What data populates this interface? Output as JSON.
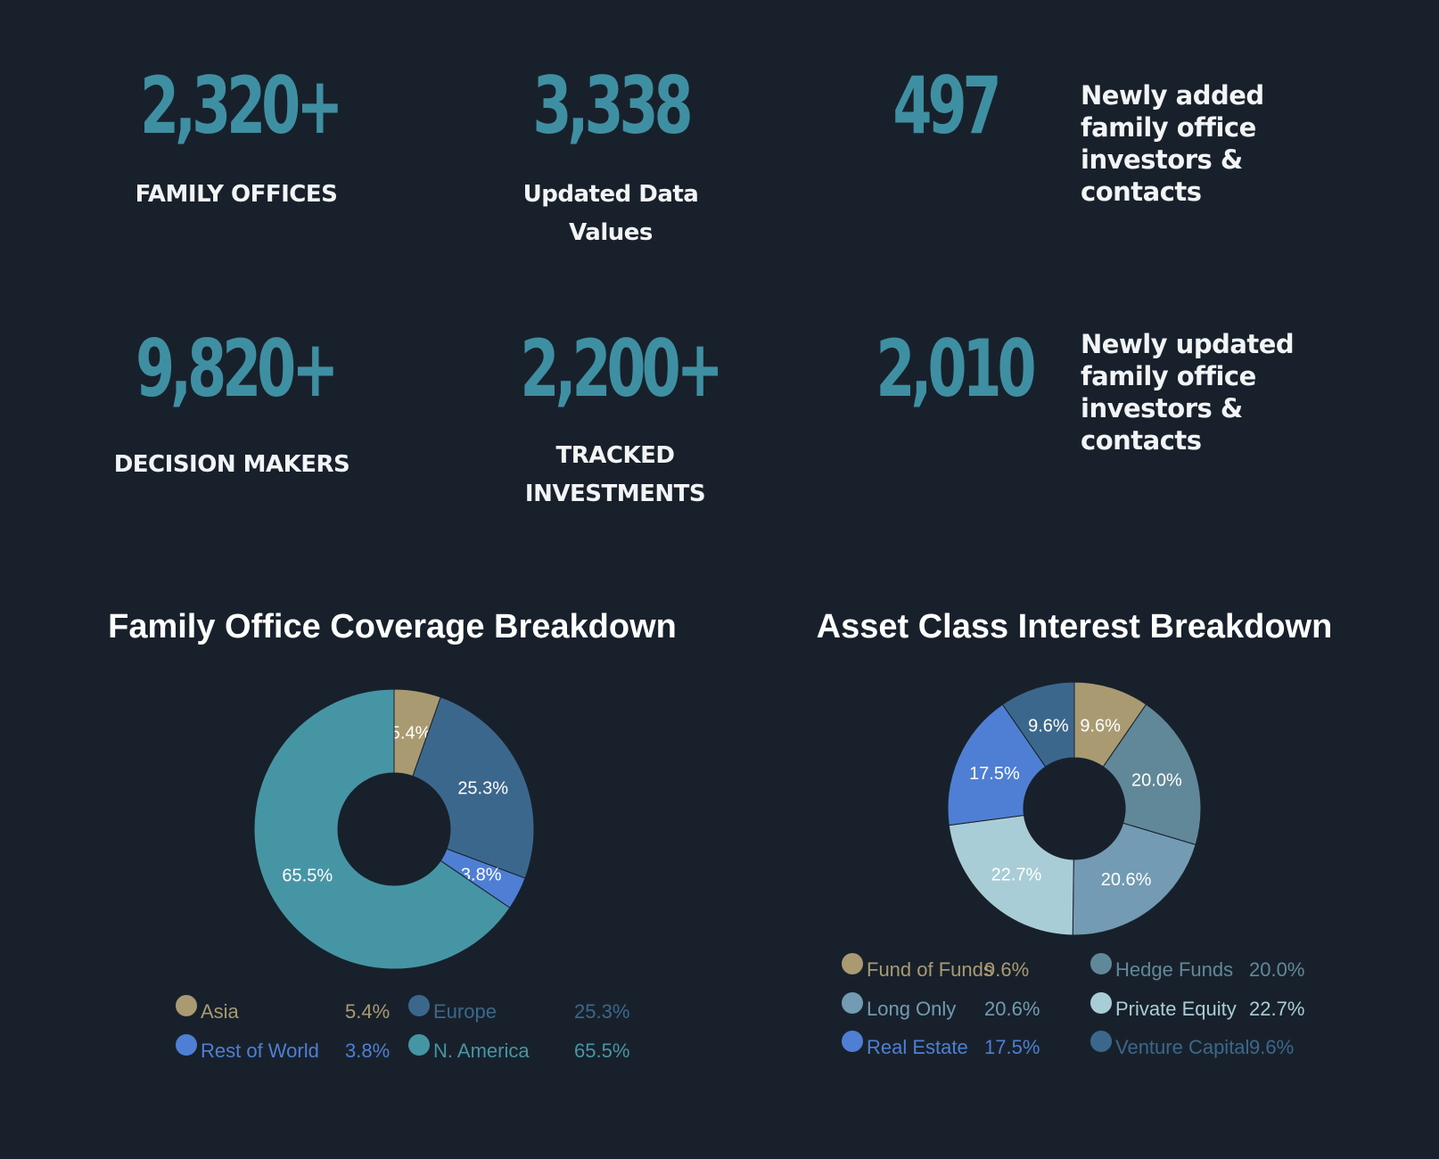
{
  "stats": [
    {
      "value": "2,320+",
      "label": "FAMILY OFFICES"
    },
    {
      "value": "3,338",
      "label": "Updated Data Values"
    },
    {
      "value": "497",
      "label": "Newly added family office  investors & contacts"
    },
    {
      "value": "9,820+",
      "label": "DECISION MAKERS"
    },
    {
      "value": "2,200+",
      "label": "TRACKED INVESTMENTS"
    },
    {
      "value": "2,010",
      "label": "Newly updated family office investors & contacts"
    }
  ],
  "colors": {
    "background": "#18212b",
    "stat_number": "#3f8fa3",
    "text": "#f2f4f6"
  },
  "chart_data": [
    {
      "type": "pie",
      "title": "Family Office Coverage Breakdown",
      "slices": [
        {
          "label": "Asia",
          "value": 5.4,
          "display": "5.4%",
          "color": "#a99a72"
        },
        {
          "label": "Europe",
          "value": 25.3,
          "display": "25.3%",
          "color": "#3c678d"
        },
        {
          "label": "Rest of World",
          "value": 3.8,
          "display": "3.8%",
          "color": "#4f7fd4"
        },
        {
          "label": "N. America",
          "value": 65.5,
          "display": "65.5%",
          "color": "#4695a5"
        }
      ],
      "legend_placement": "bottom"
    },
    {
      "type": "pie",
      "title": "Asset Class Interest Breakdown",
      "slices": [
        {
          "label": "Fund of Funds",
          "value": 9.6,
          "display": "9.6%",
          "color": "#a99a72"
        },
        {
          "label": "Hedge Funds",
          "value": 20.0,
          "display": "20.0%",
          "color": "#618898"
        },
        {
          "label": "Long Only",
          "value": 20.6,
          "display": "20.6%",
          "color": "#739bb3"
        },
        {
          "label": "Private Equity",
          "value": 22.7,
          "display": "22.7%",
          "color": "#a9cdd6"
        },
        {
          "label": "Real Estate",
          "value": 17.5,
          "display": "17.5%",
          "color": "#4f7fd4"
        },
        {
          "label": "Venture Capital",
          "value": 9.6,
          "display": "9.6%",
          "color": "#3c678d"
        }
      ],
      "legend_placement": "bottom"
    }
  ]
}
